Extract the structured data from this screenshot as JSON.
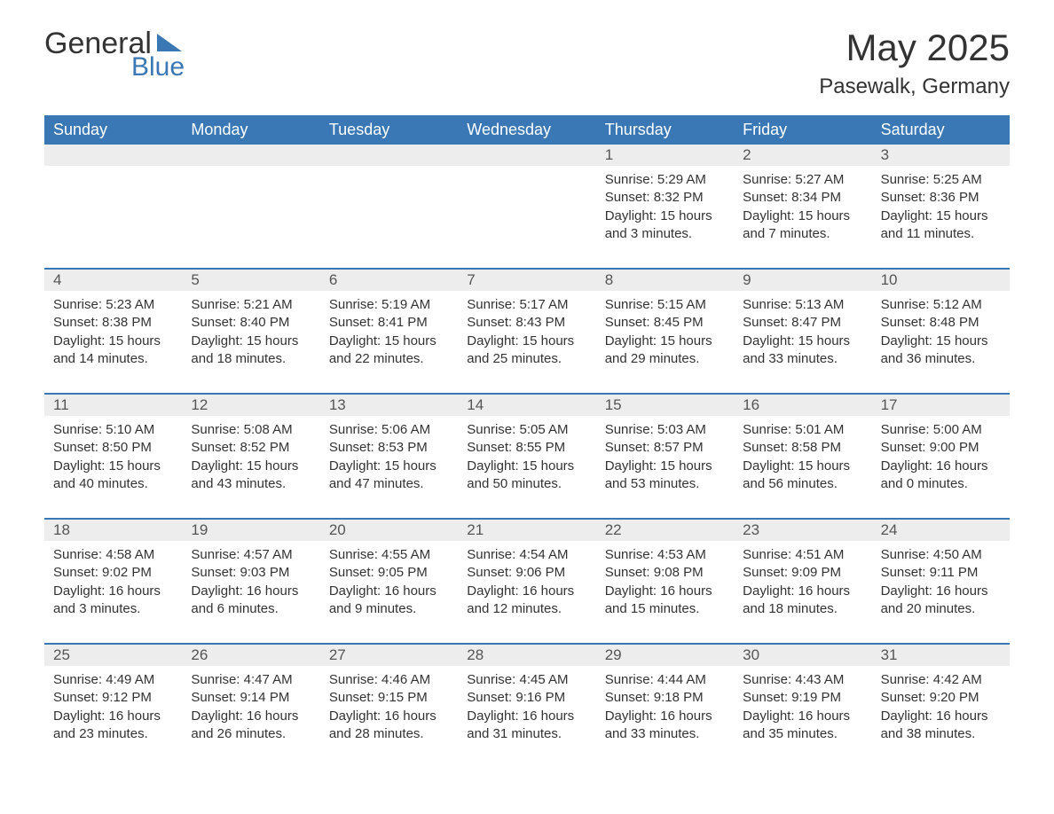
{
  "logo": {
    "word1": "General",
    "word2": "Blue"
  },
  "title": "May 2025",
  "location": "Pasewalk, Germany",
  "colors": {
    "brand": "#3a78b5",
    "header_text": "#ffffff",
    "daynum_bg": "#ededed",
    "text": "#333333",
    "bg": "#ffffff"
  },
  "layout": {
    "columns": 7,
    "weekday_fontsize": 18,
    "title_fontsize": 42,
    "location_fontsize": 24,
    "body_fontsize": 15
  },
  "weekdays": [
    "Sunday",
    "Monday",
    "Tuesday",
    "Wednesday",
    "Thursday",
    "Friday",
    "Saturday"
  ],
  "weeks": [
    [
      {
        "num": "",
        "lines": []
      },
      {
        "num": "",
        "lines": []
      },
      {
        "num": "",
        "lines": []
      },
      {
        "num": "",
        "lines": []
      },
      {
        "num": "1",
        "lines": [
          "Sunrise: 5:29 AM",
          "Sunset: 8:32 PM",
          "Daylight: 15 hours and 3 minutes."
        ]
      },
      {
        "num": "2",
        "lines": [
          "Sunrise: 5:27 AM",
          "Sunset: 8:34 PM",
          "Daylight: 15 hours and 7 minutes."
        ]
      },
      {
        "num": "3",
        "lines": [
          "Sunrise: 5:25 AM",
          "Sunset: 8:36 PM",
          "Daylight: 15 hours and 11 minutes."
        ]
      }
    ],
    [
      {
        "num": "4",
        "lines": [
          "Sunrise: 5:23 AM",
          "Sunset: 8:38 PM",
          "Daylight: 15 hours and 14 minutes."
        ]
      },
      {
        "num": "5",
        "lines": [
          "Sunrise: 5:21 AM",
          "Sunset: 8:40 PM",
          "Daylight: 15 hours and 18 minutes."
        ]
      },
      {
        "num": "6",
        "lines": [
          "Sunrise: 5:19 AM",
          "Sunset: 8:41 PM",
          "Daylight: 15 hours and 22 minutes."
        ]
      },
      {
        "num": "7",
        "lines": [
          "Sunrise: 5:17 AM",
          "Sunset: 8:43 PM",
          "Daylight: 15 hours and 25 minutes."
        ]
      },
      {
        "num": "8",
        "lines": [
          "Sunrise: 5:15 AM",
          "Sunset: 8:45 PM",
          "Daylight: 15 hours and 29 minutes."
        ]
      },
      {
        "num": "9",
        "lines": [
          "Sunrise: 5:13 AM",
          "Sunset: 8:47 PM",
          "Daylight: 15 hours and 33 minutes."
        ]
      },
      {
        "num": "10",
        "lines": [
          "Sunrise: 5:12 AM",
          "Sunset: 8:48 PM",
          "Daylight: 15 hours and 36 minutes."
        ]
      }
    ],
    [
      {
        "num": "11",
        "lines": [
          "Sunrise: 5:10 AM",
          "Sunset: 8:50 PM",
          "Daylight: 15 hours and 40 minutes."
        ]
      },
      {
        "num": "12",
        "lines": [
          "Sunrise: 5:08 AM",
          "Sunset: 8:52 PM",
          "Daylight: 15 hours and 43 minutes."
        ]
      },
      {
        "num": "13",
        "lines": [
          "Sunrise: 5:06 AM",
          "Sunset: 8:53 PM",
          "Daylight: 15 hours and 47 minutes."
        ]
      },
      {
        "num": "14",
        "lines": [
          "Sunrise: 5:05 AM",
          "Sunset: 8:55 PM",
          "Daylight: 15 hours and 50 minutes."
        ]
      },
      {
        "num": "15",
        "lines": [
          "Sunrise: 5:03 AM",
          "Sunset: 8:57 PM",
          "Daylight: 15 hours and 53 minutes."
        ]
      },
      {
        "num": "16",
        "lines": [
          "Sunrise: 5:01 AM",
          "Sunset: 8:58 PM",
          "Daylight: 15 hours and 56 minutes."
        ]
      },
      {
        "num": "17",
        "lines": [
          "Sunrise: 5:00 AM",
          "Sunset: 9:00 PM",
          "Daylight: 16 hours and 0 minutes."
        ]
      }
    ],
    [
      {
        "num": "18",
        "lines": [
          "Sunrise: 4:58 AM",
          "Sunset: 9:02 PM",
          "Daylight: 16 hours and 3 minutes."
        ]
      },
      {
        "num": "19",
        "lines": [
          "Sunrise: 4:57 AM",
          "Sunset: 9:03 PM",
          "Daylight: 16 hours and 6 minutes."
        ]
      },
      {
        "num": "20",
        "lines": [
          "Sunrise: 4:55 AM",
          "Sunset: 9:05 PM",
          "Daylight: 16 hours and 9 minutes."
        ]
      },
      {
        "num": "21",
        "lines": [
          "Sunrise: 4:54 AM",
          "Sunset: 9:06 PM",
          "Daylight: 16 hours and 12 minutes."
        ]
      },
      {
        "num": "22",
        "lines": [
          "Sunrise: 4:53 AM",
          "Sunset: 9:08 PM",
          "Daylight: 16 hours and 15 minutes."
        ]
      },
      {
        "num": "23",
        "lines": [
          "Sunrise: 4:51 AM",
          "Sunset: 9:09 PM",
          "Daylight: 16 hours and 18 minutes."
        ]
      },
      {
        "num": "24",
        "lines": [
          "Sunrise: 4:50 AM",
          "Sunset: 9:11 PM",
          "Daylight: 16 hours and 20 minutes."
        ]
      }
    ],
    [
      {
        "num": "25",
        "lines": [
          "Sunrise: 4:49 AM",
          "Sunset: 9:12 PM",
          "Daylight: 16 hours and 23 minutes."
        ]
      },
      {
        "num": "26",
        "lines": [
          "Sunrise: 4:47 AM",
          "Sunset: 9:14 PM",
          "Daylight: 16 hours and 26 minutes."
        ]
      },
      {
        "num": "27",
        "lines": [
          "Sunrise: 4:46 AM",
          "Sunset: 9:15 PM",
          "Daylight: 16 hours and 28 minutes."
        ]
      },
      {
        "num": "28",
        "lines": [
          "Sunrise: 4:45 AM",
          "Sunset: 9:16 PM",
          "Daylight: 16 hours and 31 minutes."
        ]
      },
      {
        "num": "29",
        "lines": [
          "Sunrise: 4:44 AM",
          "Sunset: 9:18 PM",
          "Daylight: 16 hours and 33 minutes."
        ]
      },
      {
        "num": "30",
        "lines": [
          "Sunrise: 4:43 AM",
          "Sunset: 9:19 PM",
          "Daylight: 16 hours and 35 minutes."
        ]
      },
      {
        "num": "31",
        "lines": [
          "Sunrise: 4:42 AM",
          "Sunset: 9:20 PM",
          "Daylight: 16 hours and 38 minutes."
        ]
      }
    ]
  ]
}
